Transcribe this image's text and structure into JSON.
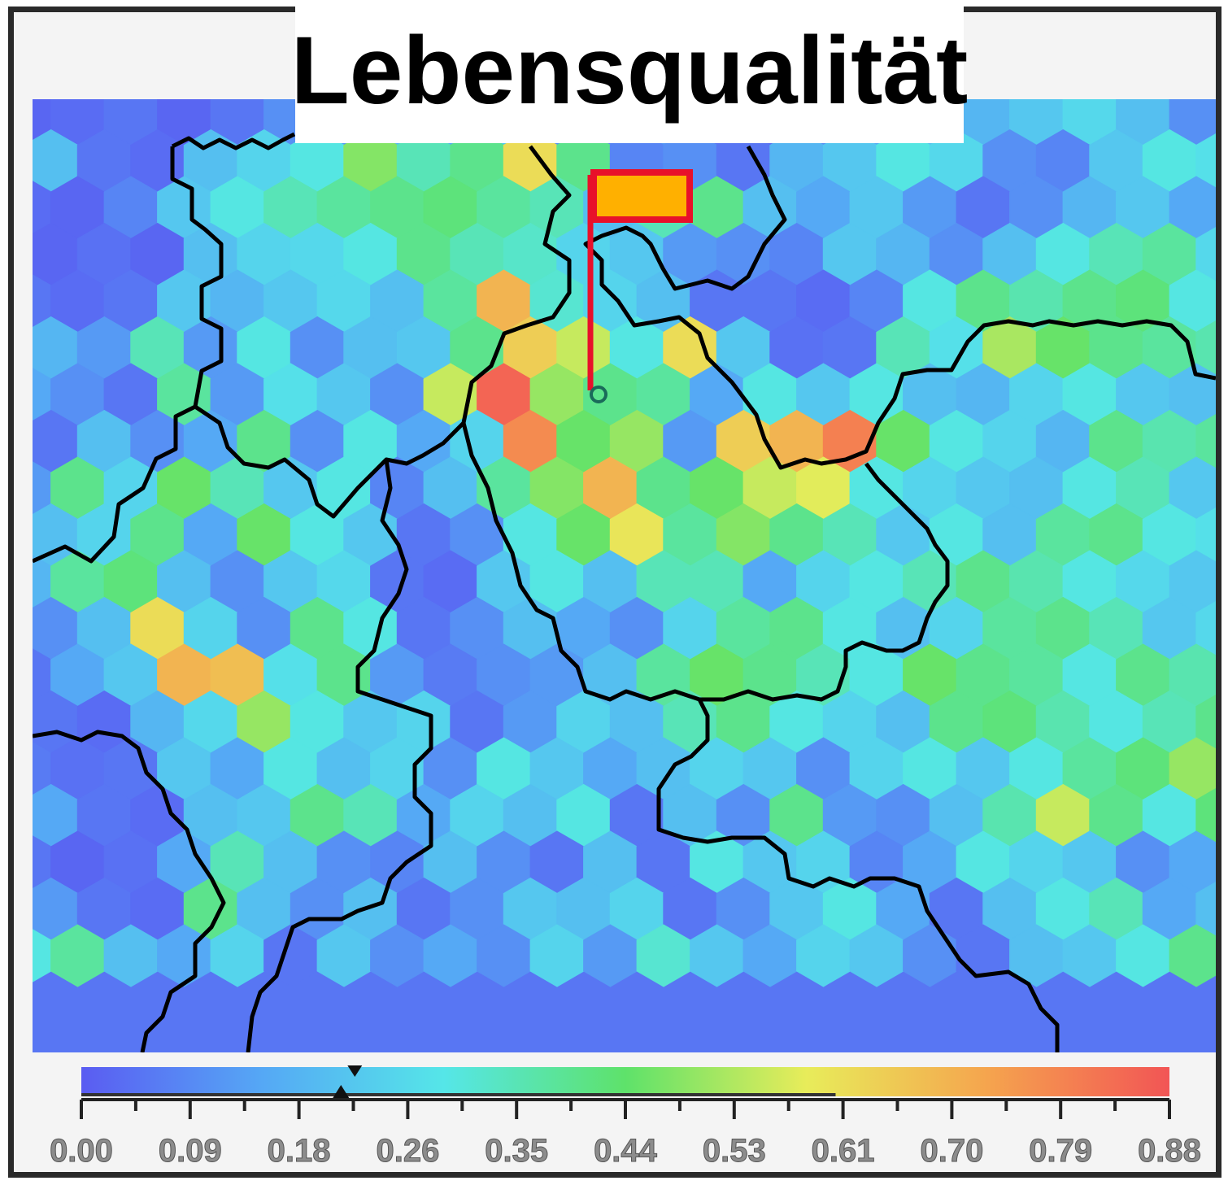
{
  "chart_data": {
    "type": "heatmap",
    "title": "Lebensqualität",
    "colorbar": {
      "min": 0.0,
      "max": 0.88,
      "tick_labels": [
        "0.00",
        "0.09",
        "0.18",
        "0.26",
        "0.35",
        "0.44",
        "0.53",
        "0.61",
        "0.70",
        "0.79",
        "0.88"
      ],
      "marker_value": 0.21,
      "range_low": 0.0,
      "range_high": 0.61
    },
    "grid_on": false,
    "flag_color": "#FFB000",
    "flag_border_color": "#E8102A",
    "colormap": [
      "#5a5cf2",
      "#55a8f5",
      "#55e6e8",
      "#5ee26a",
      "#e8ec5a",
      "#f5a44e",
      "#f25555"
    ],
    "cells": [
      [
        0.02,
        0.03,
        0.05,
        0.02,
        0.05,
        0.1,
        0.12,
        0.18,
        0.15,
        0.22,
        0.1,
        0.08,
        0.12,
        0.05,
        0.03,
        0.1,
        0.15,
        0.2,
        0.18,
        0.22,
        0.26,
        0.2,
        0.1,
        0.05
      ],
      [
        0.2,
        0.05,
        0.03,
        0.2,
        0.25,
        0.3,
        0.48,
        0.35,
        0.4,
        0.62,
        0.4,
        0.08,
        0.1,
        0.05,
        0.18,
        0.22,
        0.3,
        0.26,
        0.1,
        0.08,
        0.22,
        0.3,
        0.28,
        0.15
      ],
      [
        0.03,
        0.02,
        0.08,
        0.22,
        0.3,
        0.35,
        0.38,
        0.4,
        0.42,
        0.38,
        0.35,
        0.2,
        0.35,
        0.4,
        0.2,
        0.15,
        0.22,
        0.12,
        0.05,
        0.1,
        0.18,
        0.22,
        0.15,
        0.05
      ],
      [
        0.02,
        0.04,
        0.02,
        0.2,
        0.25,
        0.26,
        0.3,
        0.4,
        0.35,
        0.33,
        0.25,
        0.22,
        0.12,
        0.1,
        0.08,
        0.22,
        0.18,
        0.1,
        0.2,
        0.3,
        0.35,
        0.38,
        0.26,
        0.1
      ],
      [
        0.05,
        0.03,
        0.05,
        0.22,
        0.18,
        0.22,
        0.26,
        0.2,
        0.38,
        0.7,
        0.32,
        0.25,
        0.2,
        0.05,
        0.05,
        0.03,
        0.08,
        0.3,
        0.4,
        0.36,
        0.4,
        0.42,
        0.3,
        0.18
      ],
      [
        0.18,
        0.12,
        0.35,
        0.12,
        0.3,
        0.1,
        0.2,
        0.22,
        0.4,
        0.65,
        0.55,
        0.3,
        0.62,
        0.22,
        0.04,
        0.05,
        0.35,
        0.28,
        0.52,
        0.45,
        0.4,
        0.38,
        0.36,
        0.25
      ],
      [
        0.15,
        0.1,
        0.05,
        0.38,
        0.12,
        0.28,
        0.22,
        0.1,
        0.55,
        0.85,
        0.5,
        0.4,
        0.38,
        0.15,
        0.3,
        0.22,
        0.3,
        0.2,
        0.18,
        0.25,
        0.3,
        0.22,
        0.2,
        0.3
      ],
      [
        0.05,
        0.2,
        0.1,
        0.15,
        0.4,
        0.1,
        0.3,
        0.15,
        0.25,
        0.78,
        0.45,
        0.5,
        0.12,
        0.65,
        0.7,
        0.8,
        0.45,
        0.3,
        0.25,
        0.18,
        0.4,
        0.36,
        0.38,
        0.4
      ],
      [
        0.12,
        0.4,
        0.25,
        0.45,
        0.35,
        0.22,
        0.3,
        0.08,
        0.2,
        0.38,
        0.48,
        0.7,
        0.4,
        0.45,
        0.55,
        0.58,
        0.3,
        0.25,
        0.22,
        0.2,
        0.3,
        0.35,
        0.22,
        0.36
      ],
      [
        0.2,
        0.25,
        0.4,
        0.15,
        0.45,
        0.3,
        0.22,
        0.05,
        0.1,
        0.3,
        0.45,
        0.6,
        0.38,
        0.48,
        0.4,
        0.35,
        0.22,
        0.3,
        0.2,
        0.38,
        0.4,
        0.3,
        0.28,
        0.2
      ],
      [
        0.18,
        0.38,
        0.42,
        0.2,
        0.1,
        0.22,
        0.26,
        0.05,
        0.03,
        0.22,
        0.3,
        0.2,
        0.35,
        0.35,
        0.15,
        0.25,
        0.3,
        0.35,
        0.4,
        0.36,
        0.3,
        0.26,
        0.22,
        0.25
      ],
      [
        0.1,
        0.2,
        0.62,
        0.25,
        0.1,
        0.4,
        0.3,
        0.05,
        0.1,
        0.2,
        0.15,
        0.1,
        0.25,
        0.38,
        0.4,
        0.3,
        0.2,
        0.25,
        0.38,
        0.4,
        0.35,
        0.22,
        0.26,
        0.3
      ],
      [
        0.05,
        0.15,
        0.22,
        0.7,
        0.68,
        0.28,
        0.4,
        0.12,
        0.06,
        0.1,
        0.12,
        0.2,
        0.38,
        0.45,
        0.4,
        0.35,
        0.3,
        0.45,
        0.4,
        0.38,
        0.3,
        0.4,
        0.36,
        0.42
      ],
      [
        0.05,
        0.03,
        0.18,
        0.26,
        0.5,
        0.3,
        0.22,
        0.25,
        0.05,
        0.12,
        0.25,
        0.2,
        0.35,
        0.4,
        0.3,
        0.25,
        0.2,
        0.4,
        0.42,
        0.36,
        0.3,
        0.35,
        0.4,
        0.45
      ],
      [
        0.06,
        0.04,
        0.05,
        0.22,
        0.15,
        0.3,
        0.2,
        0.25,
        0.1,
        0.3,
        0.22,
        0.15,
        0.2,
        0.25,
        0.22,
        0.1,
        0.25,
        0.3,
        0.22,
        0.3,
        0.38,
        0.42,
        0.5,
        0.4
      ],
      [
        0.15,
        0.05,
        0.03,
        0.2,
        0.22,
        0.4,
        0.35,
        0.15,
        0.25,
        0.2,
        0.3,
        0.05,
        0.2,
        0.1,
        0.4,
        0.12,
        0.1,
        0.2,
        0.36,
        0.55,
        0.4,
        0.3,
        0.42,
        0.2
      ],
      [
        0.05,
        0.02,
        0.04,
        0.15,
        0.35,
        0.2,
        0.1,
        0.08,
        0.2,
        0.1,
        0.05,
        0.2,
        0.05,
        0.3,
        0.22,
        0.25,
        0.08,
        0.15,
        0.3,
        0.25,
        0.22,
        0.1,
        0.15,
        0.3
      ],
      [
        0.12,
        0.05,
        0.03,
        0.4,
        0.2,
        0.1,
        0.2,
        0.05,
        0.1,
        0.22,
        0.2,
        0.25,
        0.05,
        0.1,
        0.22,
        0.3,
        0.15,
        0.05,
        0.2,
        0.3,
        0.35,
        0.15,
        0.2,
        0.25
      ],
      [
        0.3,
        0.38,
        0.2,
        0.15,
        0.25,
        0.05,
        0.22,
        0.1,
        0.15,
        0.1,
        0.25,
        0.12,
        0.32,
        0.22,
        0.15,
        0.25,
        0.22,
        0.1,
        0.05,
        0.2,
        0.22,
        0.3,
        0.4,
        0.62
      ]
    ]
  }
}
